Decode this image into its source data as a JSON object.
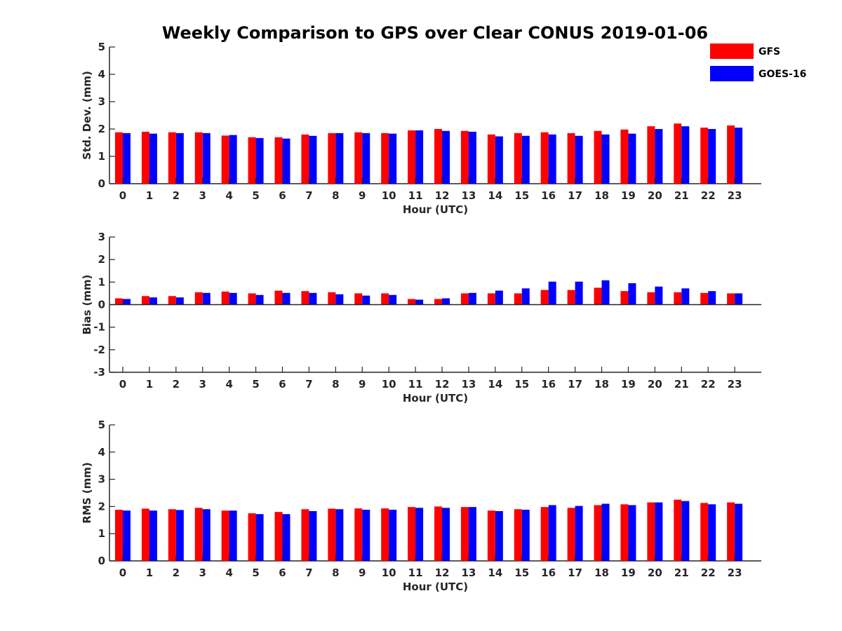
{
  "title": "Weekly Comparison to GPS over Clear CONUS 2019-01-06",
  "legend": {
    "placement": "top-right",
    "entries": [
      {
        "name": "GFS",
        "color": "#ff0000"
      },
      {
        "name": "GOES-16",
        "color": "#0000ff"
      }
    ]
  },
  "chart_data": [
    {
      "type": "bar",
      "xlabel": "Hour (UTC)",
      "ylabel": "Std. Dev. (mm)",
      "ylim": [
        0,
        5
      ],
      "yticks": [
        0,
        1,
        2,
        3,
        4,
        5
      ],
      "categories": [
        "0",
        "1",
        "2",
        "3",
        "4",
        "5",
        "6",
        "7",
        "8",
        "9",
        "10",
        "11",
        "12",
        "13",
        "14",
        "15",
        "16",
        "17",
        "18",
        "19",
        "20",
        "21",
        "22",
        "23"
      ],
      "series": [
        {
          "name": "GFS",
          "color": "#ff0000",
          "values": [
            1.88,
            1.9,
            1.88,
            1.88,
            1.76,
            1.7,
            1.7,
            1.8,
            1.85,
            1.88,
            1.85,
            1.95,
            2.0,
            1.93,
            1.8,
            1.85,
            1.88,
            1.85,
            1.93,
            1.98,
            2.1,
            2.2,
            2.05,
            2.13
          ]
        },
        {
          "name": "GOES-16",
          "color": "#0000ff",
          "values": [
            1.85,
            1.83,
            1.85,
            1.85,
            1.78,
            1.67,
            1.65,
            1.75,
            1.85,
            1.85,
            1.83,
            1.95,
            1.93,
            1.9,
            1.73,
            1.75,
            1.8,
            1.75,
            1.8,
            1.83,
            2.0,
            2.1,
            2.0,
            2.05
          ]
        }
      ]
    },
    {
      "type": "bar",
      "xlabel": "Hour (UTC)",
      "ylabel": "Bias (mm)",
      "ylim": [
        -3,
        3
      ],
      "yticks": [
        -3,
        -2,
        -1,
        0,
        1,
        2,
        3
      ],
      "categories": [
        "0",
        "1",
        "2",
        "3",
        "4",
        "5",
        "6",
        "7",
        "8",
        "9",
        "10",
        "11",
        "12",
        "13",
        "14",
        "15",
        "16",
        "17",
        "18",
        "19",
        "20",
        "21",
        "22",
        "23"
      ],
      "series": [
        {
          "name": "GFS",
          "color": "#ff0000",
          "values": [
            0.28,
            0.38,
            0.38,
            0.55,
            0.58,
            0.5,
            0.62,
            0.6,
            0.55,
            0.5,
            0.5,
            0.25,
            0.25,
            0.5,
            0.5,
            0.5,
            0.65,
            0.65,
            0.75,
            0.6,
            0.55,
            0.55,
            0.52,
            0.5
          ]
        },
        {
          "name": "GOES-16",
          "color": "#0000ff",
          "values": [
            0.25,
            0.32,
            0.32,
            0.52,
            0.52,
            0.43,
            0.52,
            0.52,
            0.46,
            0.4,
            0.43,
            0.22,
            0.28,
            0.52,
            0.62,
            0.72,
            1.02,
            1.02,
            1.08,
            0.95,
            0.8,
            0.72,
            0.6,
            0.5
          ]
        }
      ]
    },
    {
      "type": "bar",
      "xlabel": "Hour (UTC)",
      "ylabel": "RMS (mm)",
      "ylim": [
        0,
        5
      ],
      "yticks": [
        0,
        1,
        2,
        3,
        4,
        5
      ],
      "categories": [
        "0",
        "1",
        "2",
        "3",
        "4",
        "5",
        "6",
        "7",
        "8",
        "9",
        "10",
        "11",
        "12",
        "13",
        "14",
        "15",
        "16",
        "17",
        "18",
        "19",
        "20",
        "21",
        "22",
        "23"
      ],
      "series": [
        {
          "name": "GFS",
          "color": "#ff0000",
          "values": [
            1.88,
            1.92,
            1.9,
            1.95,
            1.85,
            1.75,
            1.8,
            1.9,
            1.92,
            1.93,
            1.93,
            1.98,
            2.0,
            1.98,
            1.85,
            1.9,
            1.98,
            1.95,
            2.05,
            2.08,
            2.15,
            2.25,
            2.13,
            2.15
          ]
        },
        {
          "name": "GOES-16",
          "color": "#0000ff",
          "values": [
            1.85,
            1.85,
            1.87,
            1.9,
            1.85,
            1.72,
            1.72,
            1.83,
            1.9,
            1.88,
            1.88,
            1.95,
            1.95,
            1.98,
            1.83,
            1.88,
            2.05,
            2.02,
            2.1,
            2.05,
            2.15,
            2.2,
            2.08,
            2.1
          ]
        }
      ]
    }
  ]
}
